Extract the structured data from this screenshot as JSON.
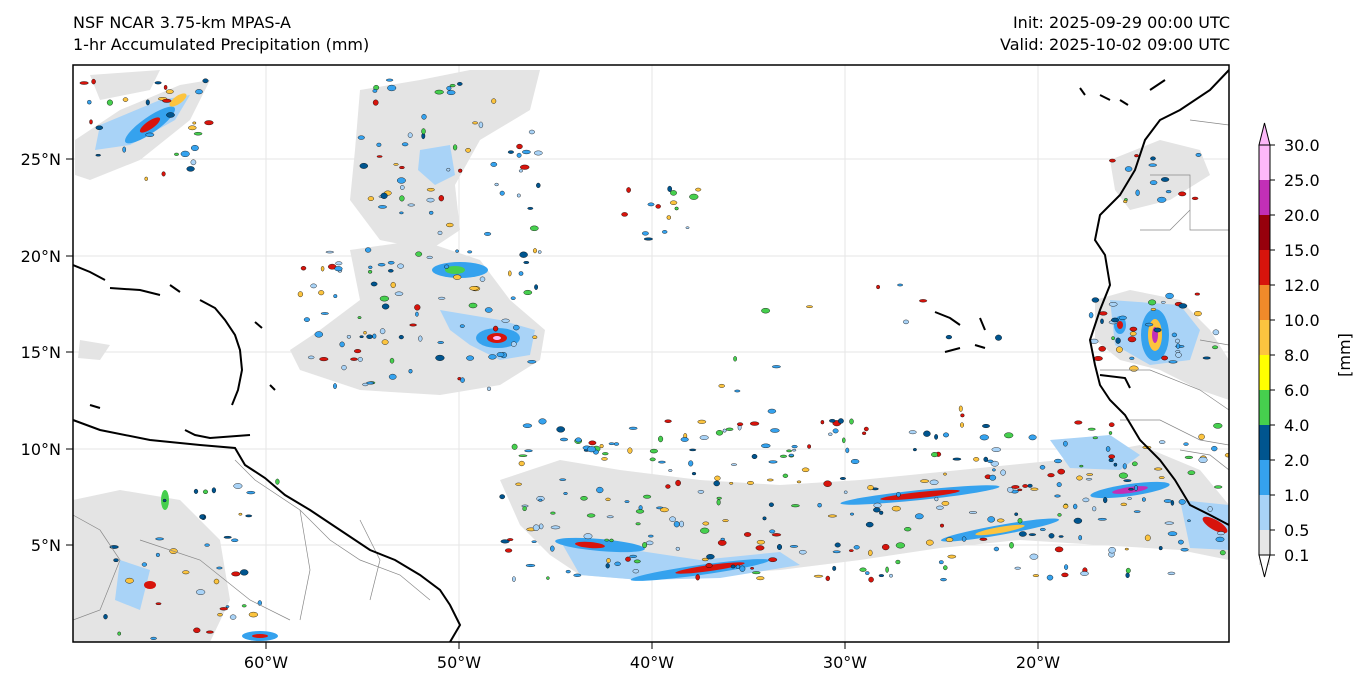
{
  "header": {
    "model": "NSF NCAR 3.75-km MPAS-A",
    "variable": "1-hr Accumulated Precipitation (mm)",
    "init": "Init: 2025-09-29 00:00 UTC",
    "valid": "Valid: 2025-10-02 09:00 UTC"
  },
  "map": {
    "lat_labels": [
      "25°N",
      "20°N",
      "15°N",
      "10°N",
      "5°N"
    ],
    "lon_labels": [
      "60°W",
      "50°W",
      "40°W",
      "30°W",
      "20°W"
    ]
  },
  "colorbar": {
    "unit": "[mm]",
    "levels": [
      "0.1",
      "0.5",
      "1.0",
      "2.0",
      "4.0",
      "6.0",
      "8.0",
      "10.0",
      "12.0",
      "15.0",
      "20.0",
      "25.0",
      "30.0"
    ],
    "colors": [
      "#e6e6e6",
      "#a9d3f7",
      "#35a2ee",
      "#00558f",
      "#46cf4e",
      "#ffff00",
      "#fcc43f",
      "#f08a2a",
      "#d7140c",
      "#96000c",
      "#c22fb7",
      "#fdb8f9"
    ]
  }
}
